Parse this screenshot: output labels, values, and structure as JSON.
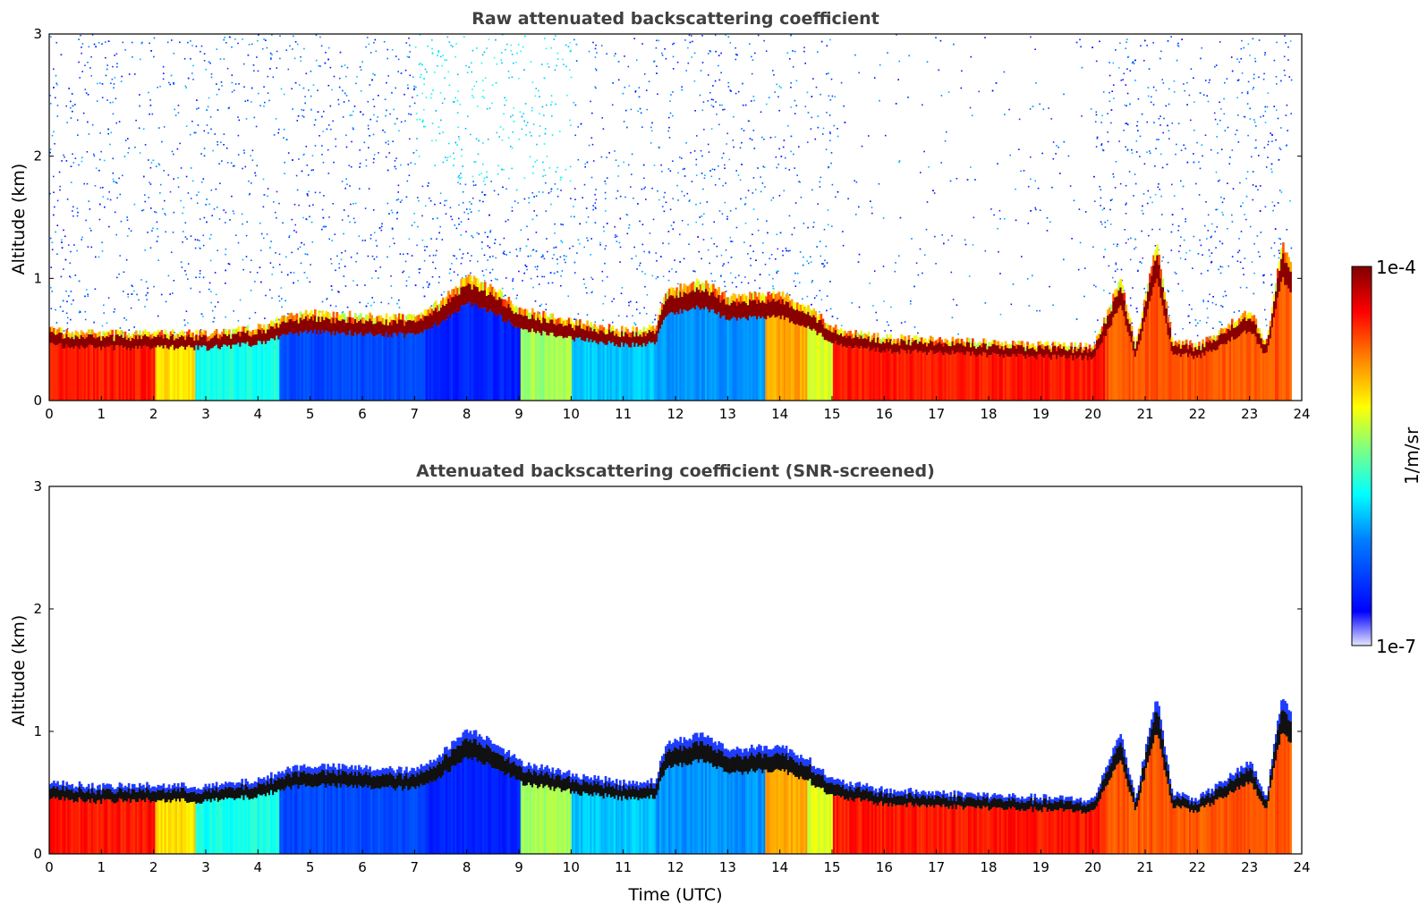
{
  "chart_data": [
    {
      "type": "heatmap",
      "title": "Raw attenuated backscattering coefficient",
      "xlabel": "",
      "ylabel": "Altitude (km)",
      "xlim": [
        0,
        24
      ],
      "ylim": [
        0,
        3
      ],
      "x_ticks": [
        "0",
        "1",
        "2",
        "3",
        "4",
        "5",
        "6",
        "7",
        "8",
        "9",
        "10",
        "11",
        "12",
        "13",
        "14",
        "15",
        "16",
        "17",
        "18",
        "19",
        "20",
        "21",
        "22",
        "23",
        "24"
      ],
      "y_ticks": [
        "0",
        "1",
        "2",
        "3"
      ],
      "screened": false,
      "layer_top_km": [
        [
          0,
          0.58
        ],
        [
          1,
          0.55
        ],
        [
          2,
          0.56
        ],
        [
          3,
          0.55
        ],
        [
          4,
          0.6
        ],
        [
          4.6,
          0.7
        ],
        [
          5,
          0.72
        ],
        [
          6,
          0.7
        ],
        [
          7,
          0.68
        ],
        [
          7.5,
          0.82
        ],
        [
          8,
          1.02
        ],
        [
          8.5,
          0.92
        ],
        [
          9,
          0.75
        ],
        [
          10,
          0.65
        ],
        [
          11,
          0.58
        ],
        [
          11.6,
          0.6
        ],
        [
          11.8,
          0.9
        ],
        [
          12.5,
          0.98
        ],
        [
          13,
          0.85
        ],
        [
          14,
          0.88
        ],
        [
          14.5,
          0.78
        ],
        [
          15,
          0.6
        ],
        [
          16,
          0.52
        ],
        [
          17,
          0.5
        ],
        [
          18,
          0.48
        ],
        [
          19,
          0.46
        ],
        [
          20,
          0.44
        ],
        [
          20.5,
          1.0
        ],
        [
          20.8,
          0.45
        ],
        [
          21.2,
          1.3
        ],
        [
          21.5,
          0.5
        ],
        [
          22,
          0.45
        ],
        [
          23,
          0.75
        ],
        [
          23.3,
          0.45
        ],
        [
          23.6,
          1.3
        ],
        [
          23.8,
          1.1
        ]
      ],
      "colorbar": {
        "min_label": "1e-7",
        "max_label": "1e-4",
        "label": "1/m/sr",
        "scale": "log",
        "colormap": "jet"
      }
    },
    {
      "type": "heatmap",
      "title": "Attenuated backscattering coefficient (SNR-screened)",
      "xlabel": "Time (UTC)",
      "ylabel": "Altitude (km)",
      "xlim": [
        0,
        24
      ],
      "ylim": [
        0,
        3
      ],
      "x_ticks": [
        "0",
        "1",
        "2",
        "3",
        "4",
        "5",
        "6",
        "7",
        "8",
        "9",
        "10",
        "11",
        "12",
        "13",
        "14",
        "15",
        "16",
        "17",
        "18",
        "19",
        "20",
        "21",
        "22",
        "23",
        "24"
      ],
      "y_ticks": [
        "0",
        "1",
        "2",
        "3"
      ],
      "screened": true,
      "layer_top_km": [
        [
          0,
          0.58
        ],
        [
          1,
          0.55
        ],
        [
          2,
          0.56
        ],
        [
          3,
          0.55
        ],
        [
          4,
          0.6
        ],
        [
          4.6,
          0.7
        ],
        [
          5,
          0.72
        ],
        [
          6,
          0.7
        ],
        [
          7,
          0.68
        ],
        [
          7.5,
          0.82
        ],
        [
          8,
          1.02
        ],
        [
          8.5,
          0.92
        ],
        [
          9,
          0.75
        ],
        [
          10,
          0.65
        ],
        [
          11,
          0.58
        ],
        [
          11.6,
          0.6
        ],
        [
          11.8,
          0.9
        ],
        [
          12.5,
          0.98
        ],
        [
          13,
          0.85
        ],
        [
          14,
          0.88
        ],
        [
          14.5,
          0.78
        ],
        [
          15,
          0.6
        ],
        [
          16,
          0.52
        ],
        [
          17,
          0.5
        ],
        [
          18,
          0.48
        ],
        [
          19,
          0.46
        ],
        [
          20,
          0.44
        ],
        [
          20.5,
          1.0
        ],
        [
          20.8,
          0.45
        ],
        [
          21.2,
          1.3
        ],
        [
          21.5,
          0.5
        ],
        [
          22,
          0.45
        ],
        [
          23,
          0.75
        ],
        [
          23.3,
          0.45
        ],
        [
          23.6,
          1.3
        ],
        [
          23.8,
          1.1
        ]
      ],
      "colorbar": {
        "min_label": "1e-7",
        "max_label": "1e-4",
        "label": "1/m/sr",
        "scale": "log",
        "colormap": "jet"
      }
    }
  ],
  "colorbar": {
    "max_label": "1e-4",
    "min_label": "1e-7",
    "label": "1/m/sr"
  }
}
